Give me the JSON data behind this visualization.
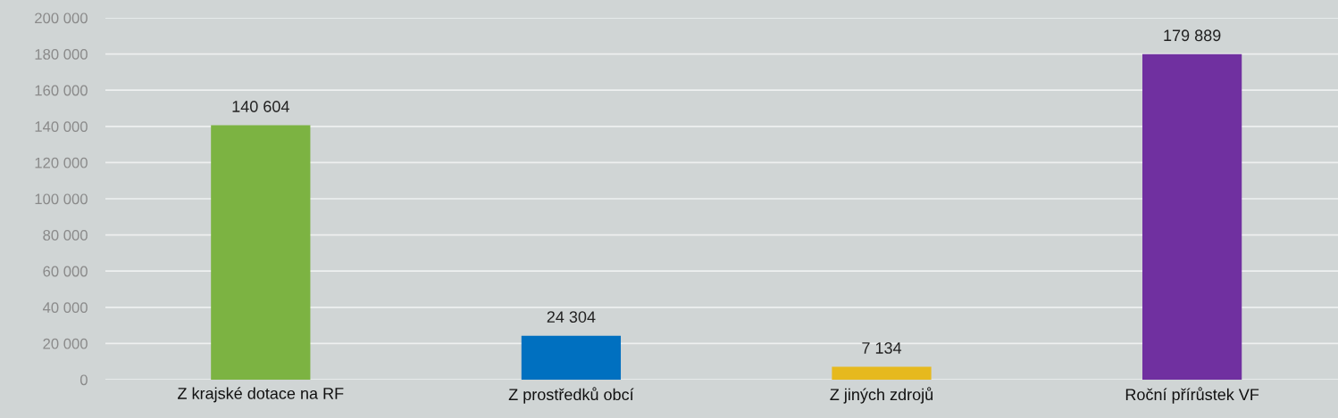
{
  "chart_data": {
    "type": "bar",
    "categories": [
      "Z krajské dotace na RF",
      "Z prostředků obcí",
      "Z jiných zdrojů",
      "Roční přírůstek VF"
    ],
    "values": [
      140604,
      24304,
      7134,
      179889
    ],
    "colors": [
      "#7cb342",
      "#0070c0",
      "#e6b91e",
      "#7030a0"
    ],
    "value_labels": [
      "140 604",
      "24 304",
      "7 134",
      "179 889"
    ],
    "ylim": [
      0,
      200000
    ],
    "yticks": [
      {
        "value": 0,
        "label": "0"
      },
      {
        "value": 20000,
        "label": "20 000"
      },
      {
        "value": 40000,
        "label": "40 000"
      },
      {
        "value": 60000,
        "label": "60 000"
      },
      {
        "value": 80000,
        "label": "80 000"
      },
      {
        "value": 100000,
        "label": "100 000"
      },
      {
        "value": 120000,
        "label": "120 000"
      },
      {
        "value": 140000,
        "label": "140 000"
      },
      {
        "value": 160000,
        "label": "160 000"
      },
      {
        "value": 180000,
        "label": "180 000"
      },
      {
        "value": 200000,
        "label": "200 000"
      }
    ],
    "grid": "y",
    "legend": false
  }
}
